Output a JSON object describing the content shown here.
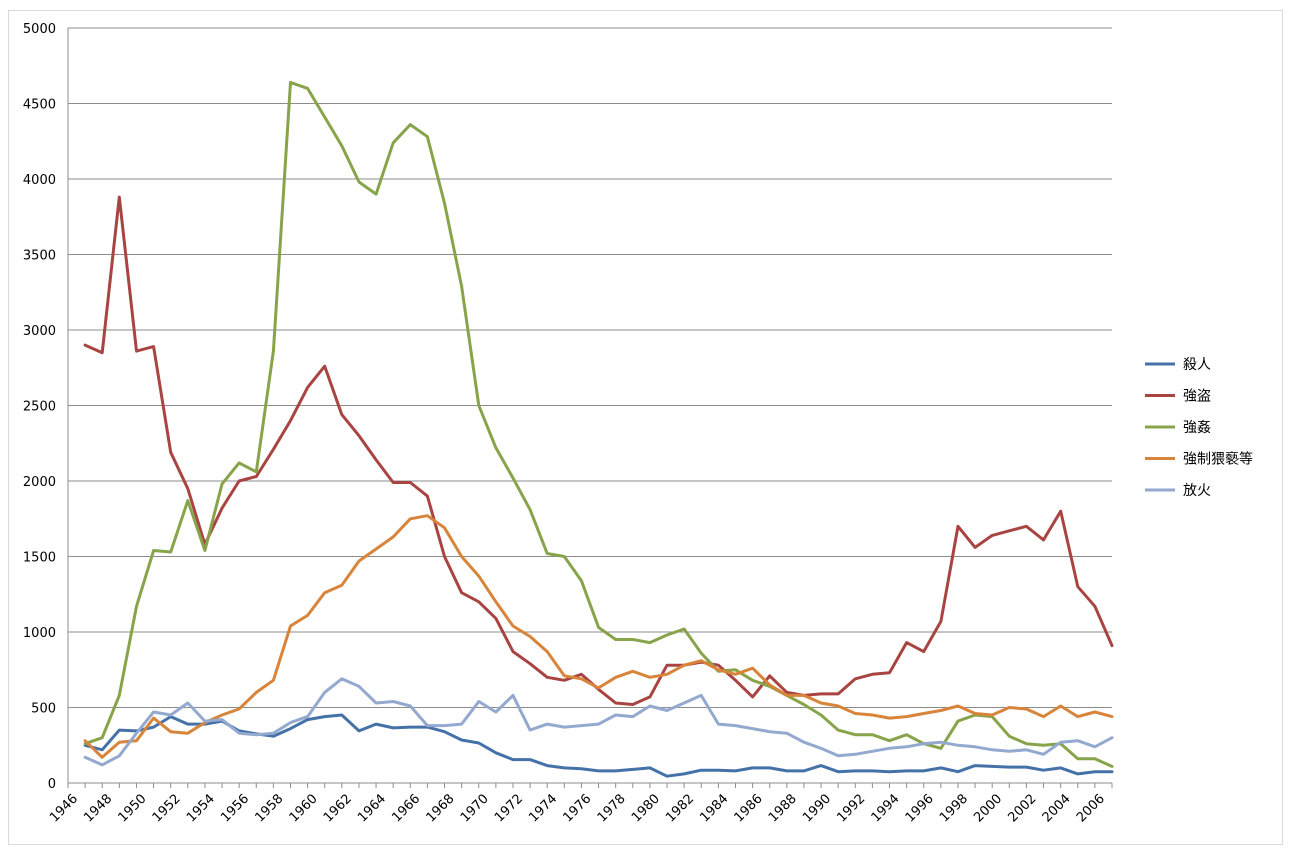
{
  "chart_data": {
    "type": "line",
    "title": "",
    "xlabel": "",
    "ylabel": "",
    "ylim": [
      0,
      5000
    ],
    "xlim": [
      1946,
      2007
    ],
    "y_ticks": [
      "0",
      "500",
      "1000",
      "1500",
      "2000",
      "2500",
      "3000",
      "3500",
      "4000",
      "4500",
      "5000"
    ],
    "x_ticks": [
      "1946",
      "1948",
      "1950",
      "1952",
      "1954",
      "1956",
      "1958",
      "1960",
      "1962",
      "1964",
      "1966",
      "1968",
      "1970",
      "1972",
      "1974",
      "1976",
      "1978",
      "1980",
      "1982",
      "1984",
      "1986",
      "1988",
      "1990",
      "1992",
      "1994",
      "1996",
      "1998",
      "2000",
      "2002",
      "2004",
      "2006"
    ],
    "grid": "horizontal",
    "legend_position": "right",
    "x": [
      1947,
      1948,
      1949,
      1950,
      1951,
      1952,
      1953,
      1954,
      1955,
      1956,
      1957,
      1958,
      1959,
      1960,
      1961,
      1962,
      1963,
      1964,
      1965,
      1966,
      1967,
      1968,
      1969,
      1970,
      1971,
      1972,
      1973,
      1974,
      1975,
      1976,
      1977,
      1978,
      1979,
      1980,
      1981,
      1982,
      1983,
      1984,
      1985,
      1986,
      1987,
      1988,
      1989,
      1990,
      1991,
      1992,
      1993,
      1994,
      1995,
      1996,
      1997,
      1998,
      1999,
      2000,
      2001,
      2002,
      2003,
      2004,
      2005,
      2006,
      2007
    ],
    "series": [
      {
        "name": "殺人",
        "color": "#4472a8",
        "values": [
          250,
          220,
          350,
          345,
          370,
          440,
          390,
          390,
          410,
          345,
          325,
          310,
          360,
          420,
          440,
          450,
          345,
          390,
          365,
          370,
          370,
          340,
          285,
          265,
          200,
          155,
          155,
          115,
          100,
          95,
          80,
          80,
          90,
          100,
          45,
          60,
          85,
          85,
          80,
          100,
          100,
          80,
          80,
          115,
          75,
          80,
          80,
          75,
          80,
          80,
          100,
          75,
          115,
          110,
          105,
          105,
          85,
          100,
          60,
          75,
          75
        ]
      },
      {
        "name": "強盗",
        "color": "#a84442",
        "values": [
          2900,
          2850,
          3880,
          2860,
          2890,
          2190,
          1950,
          1580,
          1820,
          2000,
          2030,
          2210,
          2400,
          2620,
          2760,
          2440,
          2300,
          2140,
          1990,
          1990,
          1900,
          1500,
          1260,
          1200,
          1090,
          870,
          790,
          700,
          680,
          720,
          620,
          530,
          520,
          570,
          780,
          780,
          800,
          780,
          680,
          570,
          710,
          600,
          580,
          590,
          590,
          690,
          720,
          730,
          930,
          870,
          1070,
          1700,
          1560,
          1640,
          1670,
          1700,
          1610,
          1800,
          1300,
          1170,
          910
        ]
      },
      {
        "name": "強姦",
        "color": "#88a44a",
        "values": [
          260,
          300,
          580,
          1170,
          1540,
          1530,
          1870,
          1540,
          1980,
          2120,
          2060,
          2860,
          4640,
          4600,
          4410,
          4220,
          3980,
          3900,
          4240,
          4360,
          4280,
          3840,
          3290,
          2500,
          2220,
          2020,
          1810,
          1520,
          1500,
          1340,
          1030,
          950,
          950,
          930,
          980,
          1020,
          860,
          740,
          750,
          680,
          640,
          580,
          520,
          450,
          350,
          320,
          320,
          280,
          320,
          260,
          230,
          410,
          450,
          440,
          310,
          260,
          250,
          260,
          160,
          160,
          110
        ]
      },
      {
        "name": "強制猥褻等",
        "color": "#d8843a",
        "values": [
          280,
          170,
          270,
          280,
          430,
          340,
          330,
          400,
          450,
          490,
          600,
          680,
          1040,
          1110,
          1260,
          1310,
          1470,
          1550,
          1630,
          1750,
          1770,
          1690,
          1500,
          1370,
          1200,
          1040,
          970,
          870,
          710,
          690,
          630,
          700,
          740,
          700,
          720,
          780,
          810,
          750,
          720,
          760,
          650,
          580,
          580,
          530,
          510,
          460,
          450,
          430,
          440,
          460,
          480,
          510,
          460,
          450,
          500,
          490,
          440,
          510,
          440,
          470,
          440
        ]
      },
      {
        "name": "放火",
        "color": "#93a9cf",
        "values": [
          170,
          120,
          180,
          330,
          470,
          450,
          530,
          410,
          420,
          330,
          320,
          330,
          400,
          440,
          600,
          690,
          640,
          530,
          540,
          510,
          380,
          380,
          390,
          540,
          470,
          580,
          350,
          390,
          370,
          380,
          390,
          450,
          440,
          510,
          480,
          530,
          580,
          390,
          380,
          360,
          340,
          330,
          270,
          230,
          180,
          190,
          210,
          230,
          240,
          260,
          270,
          250,
          240,
          220,
          210,
          220,
          190,
          270,
          280,
          240,
          300
        ]
      }
    ]
  }
}
